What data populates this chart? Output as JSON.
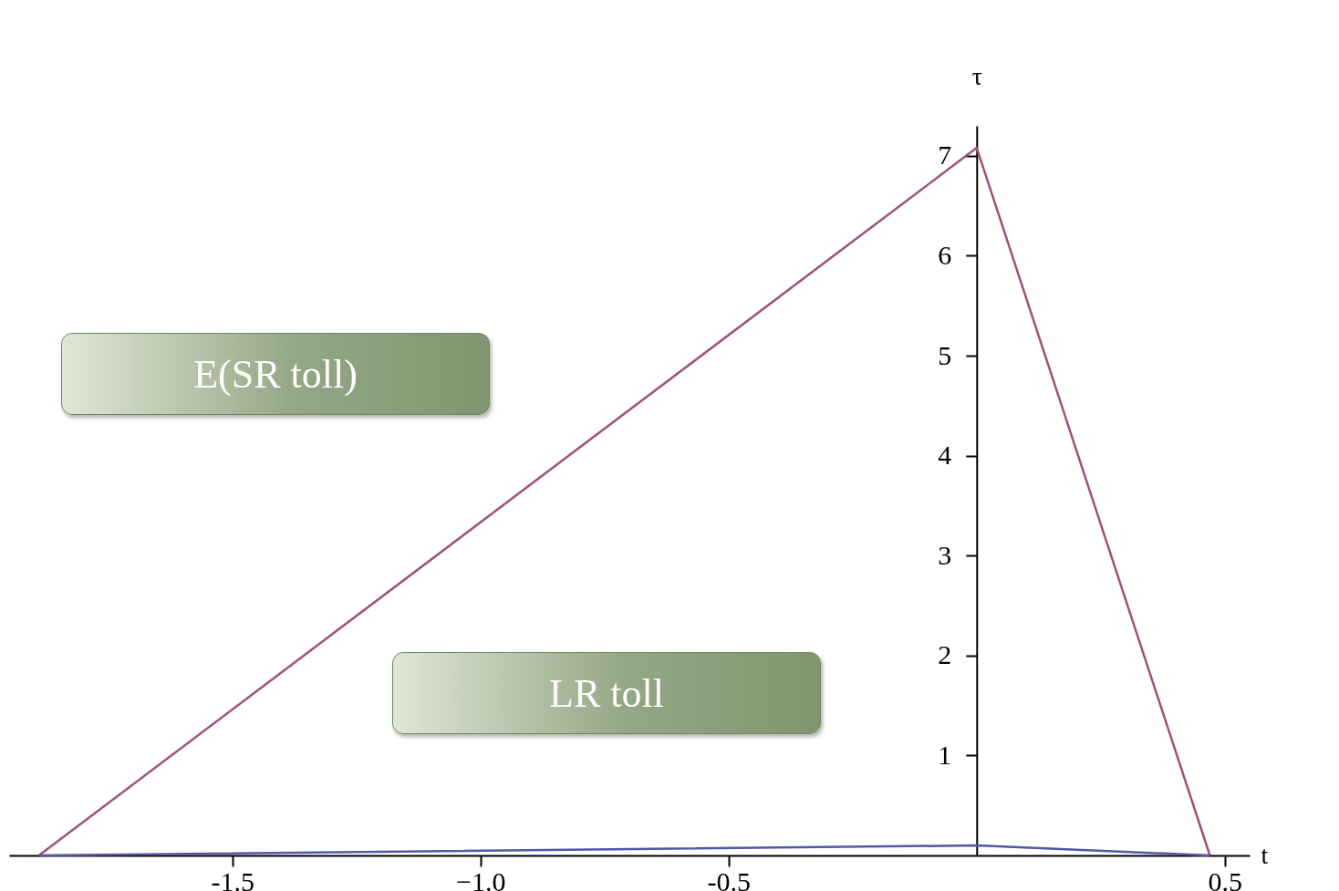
{
  "chart_data": {
    "type": "line",
    "xlabel": "t",
    "ylabel": "τ",
    "xlim": [
      -1.95,
      0.55
    ],
    "ylim": [
      0,
      7.3
    ],
    "xticks": [
      -1.5,
      {
        "value": -1,
        "label": "−1.0"
      },
      -0.5,
      0.5
    ],
    "yticks": [
      1,
      2,
      3,
      4,
      5,
      6,
      7
    ],
    "grid": false,
    "legend": false,
    "marker": "none",
    "line_style": "solid",
    "series": [
      {
        "color": "#a0507a",
        "x": [
          -1.89,
          0,
          0.47
        ],
        "values": [
          0,
          7.08,
          0
        ]
      },
      {
        "color": "#5058a8",
        "x": [
          -1.89,
          0,
          0.47
        ],
        "values": [
          0,
          0.1,
          0
        ]
      }
    ],
    "annotations": [
      "E(SR toll)",
      "LR toll"
    ]
  }
}
